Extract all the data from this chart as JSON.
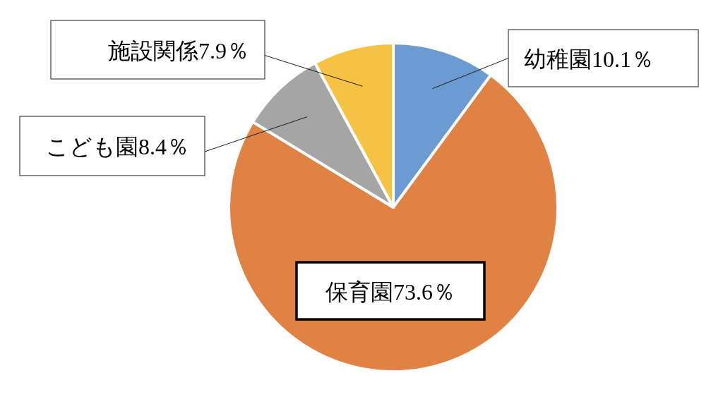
{
  "chart_data": {
    "type": "pie",
    "categories": [
      "幼稚園",
      "保育園",
      "こども園",
      "施設関係"
    ],
    "values": [
      10.1,
      73.6,
      8.4,
      7.9
    ],
    "colors": [
      "#6b9bd2",
      "#df8244",
      "#a5a5a5",
      "#f5c243"
    ],
    "value_labels": [
      "10.1％",
      "73.6％",
      "8.4％",
      "7.9％"
    ]
  }
}
